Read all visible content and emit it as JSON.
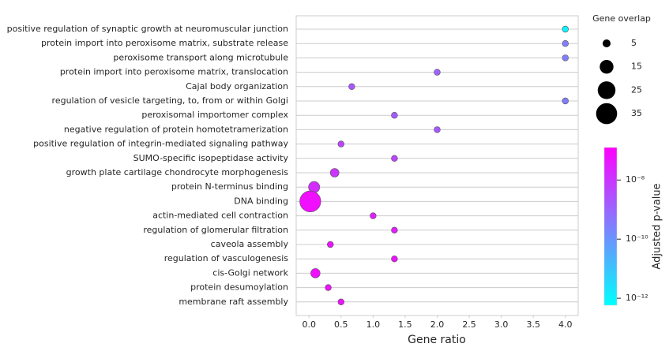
{
  "chart_data": {
    "type": "dotplot",
    "categories": [
      "positive regulation of synaptic growth at neuromuscular junction",
      "protein import into peroxisome matrix, substrate release",
      "peroxisome transport along microtubule",
      "protein import into peroxisome matrix, translocation",
      "Cajal body organization",
      "regulation of vesicle targeting, to, from or within Golgi",
      "peroxisomal importomer complex",
      "negative regulation of protein homotetramerization",
      "positive regulation of integrin-mediated signaling pathway",
      "SUMO-specific isopeptidase activity",
      "growth plate cartilage chondrocyte morphogenesis",
      "protein N-terminus binding",
      "DNA binding",
      "actin-mediated cell contraction",
      "regulation of glomerular filtration",
      "caveola assembly",
      "regulation of vasculogenesis",
      "cis-Golgi network",
      "protein desumoylation",
      "membrane raft assembly"
    ],
    "values": [
      4.0,
      4.0,
      4.0,
      2.0,
      0.667,
      4.0,
      1.333,
      2.0,
      0.5,
      1.333,
      0.4,
      0.08,
      0.02,
      1.0,
      1.333,
      0.333,
      1.333,
      0.1,
      0.3,
      0.5
    ],
    "sizes": [
      3,
      3,
      3,
      3,
      3,
      3,
      3,
      3,
      3,
      3,
      6,
      10,
      35,
      3,
      3,
      3,
      3,
      7,
      3,
      3
    ],
    "pvalues": [
      1e-12,
      3e-10,
      3e-10,
      1e-09,
      2e-09,
      3e-10,
      1.5e-09,
      2e-09,
      5e-09,
      5e-09,
      1e-08,
      1.5e-08,
      6e-08,
      3e-08,
      3e-08,
      5e-08,
      5e-08,
      6e-08,
      6e-08,
      5e-08
    ],
    "xlabel": "Gene ratio",
    "xlim": [
      -0.2,
      4.2
    ],
    "xticks": [
      {
        "value": 0,
        "label": "0.0"
      },
      0.5,
      {
        "value": 1,
        "label": "1.0"
      },
      1.5,
      {
        "value": 2,
        "label": "2.0"
      },
      2.5,
      {
        "value": 3,
        "label": "3.0"
      },
      3.5,
      {
        "value": 4,
        "label": "4.0"
      }
    ],
    "grid": true,
    "size_legend": {
      "title": "Gene overlap",
      "values": [
        5,
        15,
        25,
        35
      ]
    },
    "colorbar": {
      "label": "Adjusted p-value",
      "colormap": "cool",
      "log": true,
      "lim": [
        5.8e-13,
        1.26e-07
      ],
      "ticks": [
        {
          "value": 1e-12,
          "label": "10⁻¹²"
        },
        {
          "value": 1e-10,
          "label": "10⁻¹⁰"
        },
        {
          "value": 1e-08,
          "label": "10⁻⁸"
        }
      ]
    }
  }
}
